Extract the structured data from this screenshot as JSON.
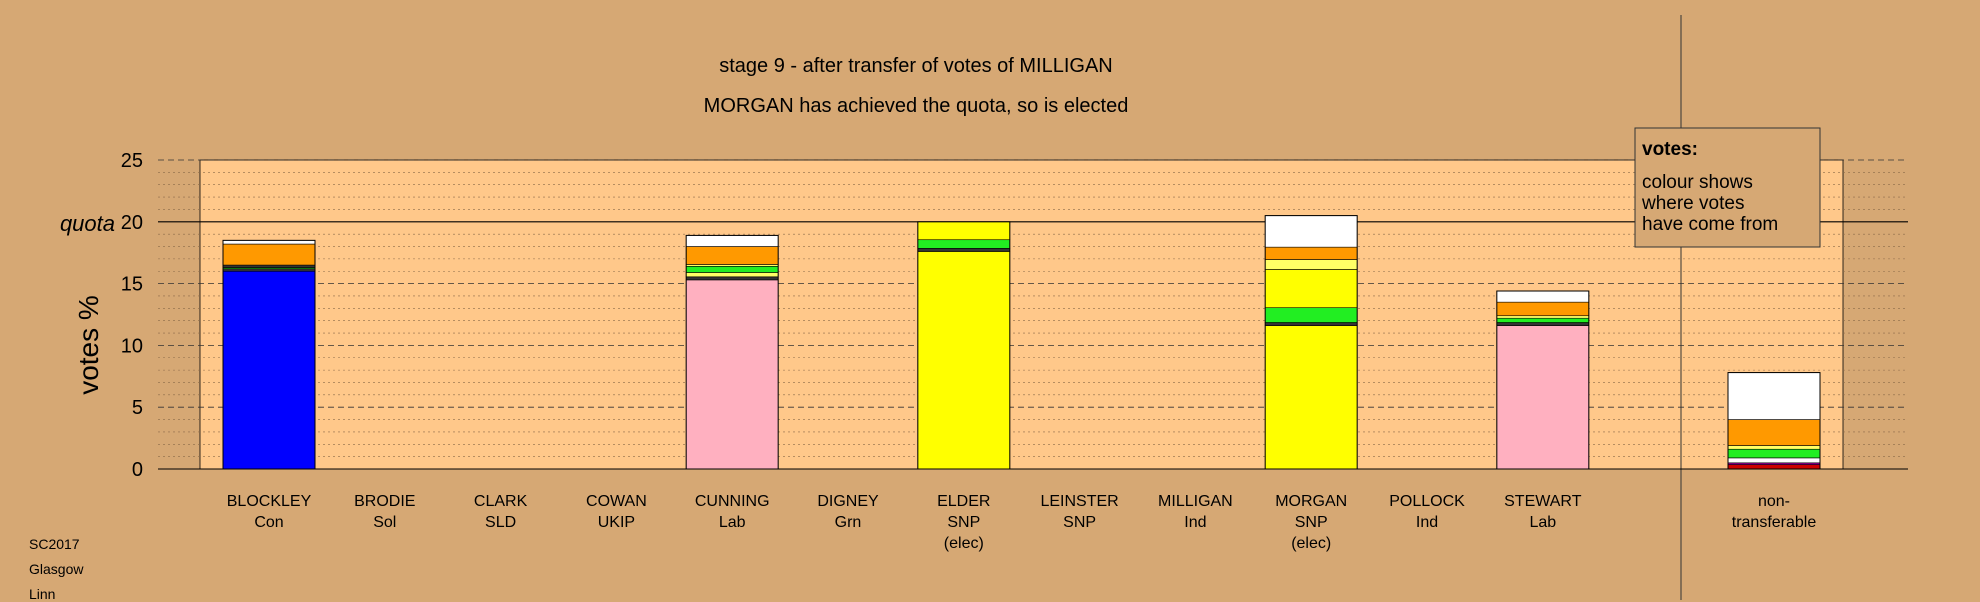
{
  "chart_data": {
    "type": "bar",
    "stacked": true,
    "title": "stage 9 - after transfer of votes of MILLIGAN",
    "subtitle": "MORGAN has achieved the quota, so is elected",
    "ylabel": "votes %",
    "quota_label": "quota",
    "quota": 20,
    "ylim": [
      0,
      25
    ],
    "yticks": [
      0,
      5,
      10,
      15,
      20,
      25
    ],
    "grid": true,
    "colors": {
      "Con": "#0000ff",
      "Lab": "#ffb0c0",
      "SNP": "#ffff00",
      "Grn": "#22ee22",
      "Sol": "#cc0000",
      "UKIP": "#990099",
      "Ind": "#ffffff",
      "LD": "#ff9900",
      "dark": "#333333",
      "Other": "#ffff66"
    },
    "categories": [
      {
        "name": "BLOCKLEY",
        "party": "Con",
        "note": "",
        "segments": [
          {
            "source": "Con",
            "value": 16.0
          },
          {
            "source": "dark",
            "value": 0.2
          },
          {
            "source": "Grn",
            "value": 0.1
          },
          {
            "source": "dark",
            "value": 0.2
          },
          {
            "source": "LD",
            "value": 1.7
          },
          {
            "source": "Ind",
            "value": 0.3
          }
        ]
      },
      {
        "name": "BRODIE",
        "party": "Sol",
        "note": "",
        "segments": []
      },
      {
        "name": "CLARK",
        "party": "SLD",
        "note": "",
        "segments": []
      },
      {
        "name": "COWAN",
        "party": "UKIP",
        "note": "",
        "segments": []
      },
      {
        "name": "CUNNING",
        "party": "Lab",
        "note": "",
        "segments": [
          {
            "source": "Lab",
            "value": 15.3
          },
          {
            "source": "dark",
            "value": 0.25
          },
          {
            "source": "Other",
            "value": 0.35
          },
          {
            "source": "Grn",
            "value": 0.5
          },
          {
            "source": "Other",
            "value": 0.15
          },
          {
            "source": "LD",
            "value": 1.45
          },
          {
            "source": "Ind",
            "value": 0.9
          }
        ]
      },
      {
        "name": "DIGNEY",
        "party": "Grn",
        "note": "",
        "segments": []
      },
      {
        "name": "ELDER",
        "party": "SNP",
        "note": "(elec)",
        "segments": [
          {
            "source": "SNP",
            "value": 17.6
          },
          {
            "source": "dark",
            "value": 0.25
          },
          {
            "source": "Grn",
            "value": 0.7
          },
          {
            "source": "SNP",
            "value": 1.45
          }
        ]
      },
      {
        "name": "LEINSTER",
        "party": "SNP",
        "note": "",
        "segments": []
      },
      {
        "name": "MILLIGAN",
        "party": "Ind",
        "note": "",
        "segments": []
      },
      {
        "name": "MORGAN",
        "party": "SNP",
        "note": "(elec)",
        "segments": [
          {
            "source": "SNP",
            "value": 11.6
          },
          {
            "source": "dark",
            "value": 0.25
          },
          {
            "source": "Grn",
            "value": 1.2
          },
          {
            "source": "SNP",
            "value": 3.1
          },
          {
            "source": "Other",
            "value": 0.8
          },
          {
            "source": "LD",
            "value": 1.0
          },
          {
            "source": "Ind",
            "value": 2.55
          }
        ]
      },
      {
        "name": "POLLOCK",
        "party": "Ind",
        "note": "",
        "segments": []
      },
      {
        "name": "STEWART",
        "party": "Lab",
        "note": "",
        "segments": [
          {
            "source": "Lab",
            "value": 11.6
          },
          {
            "source": "dark",
            "value": 0.25
          },
          {
            "source": "Grn",
            "value": 0.35
          },
          {
            "source": "Other",
            "value": 0.2
          },
          {
            "source": "LD",
            "value": 1.1
          },
          {
            "source": "Ind",
            "value": 0.9
          }
        ]
      }
    ],
    "nontransferable": {
      "label_line1": "non-",
      "label_line2": "transferable",
      "segments": [
        {
          "source": "Sol",
          "value": 0.35
        },
        {
          "source": "UKIP",
          "value": 0.15
        },
        {
          "source": "Ind",
          "value": 0.4
        },
        {
          "source": "Grn",
          "value": 0.7
        },
        {
          "source": "Other",
          "value": 0.3
        },
        {
          "source": "LD",
          "value": 2.1
        },
        {
          "source": "Ind",
          "value": 3.8
        }
      ]
    },
    "legend": {
      "heading": "votes:",
      "lines": [
        "colour shows",
        "where votes",
        "have come from"
      ],
      "placement": "top-right"
    }
  },
  "footer": {
    "line1": "SC2017",
    "line2": "Glasgow",
    "line3": "Linn"
  }
}
